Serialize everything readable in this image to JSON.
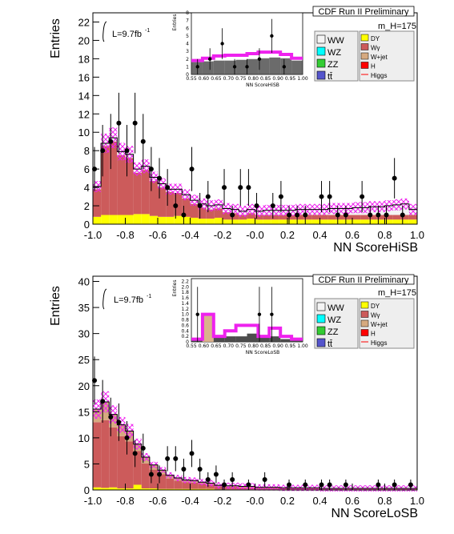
{
  "chart_data": [
    {
      "type": "bar",
      "panel": "top",
      "title": "CDF Run II Preliminary",
      "mass_label": "m_H=175",
      "lumi": "L=9.7fb",
      "lumi_exp": "-1",
      "ylabel": "Entries",
      "xlabel": "NN ScoreHiSB",
      "xlim": [
        -1.0,
        1.0
      ],
      "ylim": [
        0,
        23
      ],
      "xticks": [
        "-1.0",
        "-0.8",
        "-0.6",
        "-0.4",
        "-0.2",
        "-0.0",
        "0.2",
        "0.4",
        "0.6",
        "0.8",
        "1.0"
      ],
      "yticks": [
        "0",
        "2",
        "4",
        "6",
        "8",
        "10",
        "12",
        "14",
        "16",
        "18",
        "20",
        "22"
      ],
      "bin_edges_range": [
        -1.0,
        1.0
      ],
      "series": [
        {
          "name": "DY",
          "color": "#ffff00",
          "values": [
            0.8,
            1.0,
            1.0,
            1.0,
            1.0,
            1.1,
            1.1,
            0.9,
            0.8,
            0.8,
            0.9,
            0.8,
            0.7,
            0.6,
            0.6,
            0.7,
            0.5,
            0.5,
            0.5,
            0.6,
            0.5,
            0.5,
            0.5,
            0.5,
            0.5,
            0.5,
            0.5,
            0.5,
            0.5,
            0.5,
            0.5,
            0.5,
            0.5,
            0.5,
            0.5,
            0.5,
            0.5,
            0.5,
            0.5,
            0.5
          ]
        },
        {
          "name": "Wγ",
          "color": "#cc5b5b",
          "values": [
            3.0,
            7.5,
            8.0,
            6.5,
            6.2,
            4.5,
            4.8,
            3.8,
            3.2,
            2.7,
            2.5,
            2.0,
            1.5,
            1.2,
            1.0,
            1.0,
            0.8,
            0.7,
            0.5,
            0.6,
            0.5,
            0.5,
            0.5,
            0.5,
            0.5,
            0.5,
            0.5,
            0.5,
            0.5,
            0.5,
            0.5,
            0.5,
            0.5,
            0.5,
            0.5,
            0.5,
            0.5,
            0.5,
            0.5,
            0.5
          ]
        },
        {
          "name": "WW",
          "color": "#f4f4f4",
          "values": [
            0.2,
            0.2,
            0.3,
            0.3,
            0.3,
            0.3,
            0.3,
            0.3,
            0.3,
            0.3,
            0.3,
            0.3,
            0.3,
            0.3,
            0.3,
            0.3,
            0.3,
            0.3,
            0.3,
            0.3,
            0.3,
            0.4,
            0.4,
            0.4,
            0.4,
            0.5,
            0.5,
            0.5,
            0.5,
            0.6,
            0.6,
            0.6,
            0.7,
            0.7,
            0.8,
            0.8,
            0.9,
            1.0,
            1.0,
            0.9
          ]
        }
      ],
      "total": [
        4.1,
        8.8,
        9.4,
        7.9,
        7.6,
        6.0,
        6.3,
        5.1,
        4.4,
        3.8,
        3.8,
        3.2,
        2.6,
        2.2,
        2.0,
        2.1,
        1.7,
        1.6,
        1.4,
        1.6,
        1.4,
        1.5,
        1.5,
        1.5,
        1.5,
        1.6,
        1.6,
        1.6,
        1.6,
        1.7,
        1.7,
        1.7,
        1.8,
        1.8,
        1.9,
        1.9,
        2.0,
        2.1,
        2.2,
        1.6
      ],
      "data_points": [
        {
          "x": -0.99,
          "y": 6,
          "err": 2.4
        },
        {
          "x": -0.94,
          "y": 8,
          "err": 2.8
        },
        {
          "x": -0.89,
          "y": 9,
          "err": 3.0
        },
        {
          "x": -0.84,
          "y": 11,
          "err": 3.3
        },
        {
          "x": -0.79,
          "y": 8,
          "err": 2.8
        },
        {
          "x": -0.74,
          "y": 11,
          "err": 3.3
        },
        {
          "x": -0.69,
          "y": 9,
          "err": 3.0
        },
        {
          "x": -0.64,
          "y": 6,
          "err": 2.4
        },
        {
          "x": -0.59,
          "y": 5,
          "err": 2.2
        },
        {
          "x": -0.54,
          "y": 4,
          "err": 2.0
        },
        {
          "x": -0.49,
          "y": 2,
          "err": 1.4
        },
        {
          "x": -0.44,
          "y": 1,
          "err": 1.0
        },
        {
          "x": -0.39,
          "y": 6,
          "err": 2.4
        },
        {
          "x": -0.34,
          "y": 2,
          "err": 1.4
        },
        {
          "x": -0.29,
          "y": 3,
          "err": 1.7
        },
        {
          "x": -0.19,
          "y": 4,
          "err": 2.0
        },
        {
          "x": -0.14,
          "y": 1,
          "err": 1.0
        },
        {
          "x": -0.09,
          "y": 4,
          "err": 2.0
        },
        {
          "x": -0.04,
          "y": 4,
          "err": 2.0
        },
        {
          "x": 0.01,
          "y": 2,
          "err": 1.4
        },
        {
          "x": 0.11,
          "y": 2,
          "err": 1.4
        },
        {
          "x": 0.16,
          "y": 3,
          "err": 1.7
        },
        {
          "x": 0.21,
          "y": 1,
          "err": 1.0
        },
        {
          "x": 0.26,
          "y": 1,
          "err": 1.0
        },
        {
          "x": 0.31,
          "y": 1,
          "err": 1.0
        },
        {
          "x": 0.41,
          "y": 3,
          "err": 1.7
        },
        {
          "x": 0.46,
          "y": 3,
          "err": 1.7
        },
        {
          "x": 0.51,
          "y": 1,
          "err": 1.0
        },
        {
          "x": 0.56,
          "y": 1,
          "err": 1.0
        },
        {
          "x": 0.66,
          "y": 3,
          "err": 1.7
        },
        {
          "x": 0.71,
          "y": 1,
          "err": 1.0
        },
        {
          "x": 0.76,
          "y": 1,
          "err": 1.0
        },
        {
          "x": 0.81,
          "y": 1,
          "err": 1.0
        },
        {
          "x": 0.86,
          "y": 5,
          "err": 2.2
        },
        {
          "x": 0.91,
          "y": 1,
          "err": 1.0
        }
      ],
      "inset": {
        "ylabel": "Entries",
        "xlabel": "NN ScoreHiSB",
        "xlim": [
          0.55,
          1.0
        ],
        "ylim": [
          0,
          8
        ],
        "xticks": [
          "0.55",
          "0.60",
          "0.65",
          "0.70",
          "0.75",
          "0.80",
          "0.85",
          "0.90",
          "0.95",
          "1.00"
        ],
        "yticks": [
          "0",
          "1",
          "2",
          "3",
          "4",
          "5",
          "6",
          "7",
          "8"
        ],
        "total": [
          1.6,
          1.7,
          1.8,
          1.8,
          1.9,
          2.0,
          2.1,
          2.2,
          2.1,
          1.8
        ],
        "higgs": [
          0.2,
          0.4,
          0.6,
          0.7,
          0.6,
          0.7,
          0.8,
          0.7,
          0.5,
          0.3
        ],
        "data_points": [
          {
            "x": 0.575,
            "y": 1,
            "err": 1.0
          },
          {
            "x": 0.625,
            "y": 2,
            "err": 1.4
          },
          {
            "x": 0.675,
            "y": 4,
            "err": 2.0
          },
          {
            "x": 0.725,
            "y": 1,
            "err": 1.0
          },
          {
            "x": 0.775,
            "y": 1,
            "err": 1.0
          },
          {
            "x": 0.825,
            "y": 2,
            "err": 1.4
          },
          {
            "x": 0.875,
            "y": 5,
            "err": 2.2
          },
          {
            "x": 0.925,
            "y": 1,
            "err": 1.0
          }
        ]
      },
      "legend_left": [
        "WW",
        "WZ",
        "ZZ",
        "tt̄"
      ],
      "legend_left_colors": [
        "#f4f4f4",
        "#00ffff",
        "#33cc33",
        "#5555cc"
      ],
      "legend_right": [
        "DY",
        "Wγ",
        "W+jet",
        "H",
        "Higgs"
      ],
      "legend_right_colors": [
        "#ffff00",
        "#cc5b5b",
        "#d6aa80",
        "#ff0000",
        "#ff0000"
      ]
    },
    {
      "type": "bar",
      "panel": "bottom",
      "title": "CDF Run II Preliminary",
      "mass_label": "m_H=175",
      "lumi": "L=9.7fb",
      "lumi_exp": "-1",
      "ylabel": "Entries",
      "xlabel": "NN ScoreLoSB",
      "xlim": [
        -1.0,
        1.0
      ],
      "ylim": [
        0,
        41
      ],
      "xticks": [
        "-1.0",
        "-0.8",
        "-0.6",
        "-0.4",
        "-0.2",
        "-0.0",
        "0.2",
        "0.4",
        "0.6",
        "0.8",
        "1.0"
      ],
      "yticks": [
        "0",
        "5",
        "10",
        "15",
        "20",
        "25",
        "30",
        "35",
        "40"
      ],
      "series": [
        {
          "name": "DY",
          "color": "#ffff00",
          "values": [
            0.5,
            0.4,
            0.5,
            0.3,
            0.3,
            1.0,
            0.3,
            0.3,
            0.2,
            0.2,
            0.2,
            0.2,
            0.2,
            0.2,
            0.2,
            0.1,
            0.1,
            0.1,
            0.1,
            0.1,
            0.1,
            0.1,
            0.1,
            0.1,
            0.1,
            0.1,
            0.1,
            0.1,
            0.1,
            0.1,
            0.1,
            0.1,
            0.1,
            0.1,
            0.1,
            0.1,
            0.1,
            0.1,
            0.1,
            0.1
          ]
        },
        {
          "name": "Wγ",
          "color": "#cc5b5b",
          "values": [
            12.5,
            13.0,
            11.5,
            10.0,
            9.0,
            6.5,
            4.8,
            3.6,
            2.8,
            2.0,
            1.6,
            1.3,
            1.2,
            1.0,
            0.8,
            0.6,
            0.5,
            0.5,
            0.4,
            0.4,
            0.3,
            0.3,
            0.3,
            0.2,
            0.2,
            0.2,
            0.2,
            0.2,
            0.1,
            0.1,
            0.1,
            0.1,
            0.1,
            0.1,
            0.1,
            0.1,
            0.1,
            0.1,
            0.1,
            0.1
          ]
        },
        {
          "name": "W+jet",
          "color": "#d6aa80",
          "values": [
            2.5,
            3.5,
            2.5,
            2.2,
            2.0,
            1.3,
            1.2,
            0.9,
            0.8,
            0.6,
            0.5,
            0.4,
            0.4,
            0.3,
            0.3,
            0.2,
            0.2,
            0.2,
            0.2,
            0.2,
            0.1,
            0.1,
            0.1,
            0.1,
            0.1,
            0.1,
            0.1,
            0.1,
            0.1,
            0.1,
            0.1,
            0.1,
            0.1,
            0.1,
            0.1,
            0.1,
            0.1,
            0.1,
            0.1,
            0.1
          ]
        }
      ],
      "total": [
        15.5,
        16.9,
        14.5,
        12.5,
        11.3,
        8.8,
        6.3,
        4.8,
        3.8,
        2.8,
        2.3,
        1.9,
        1.8,
        1.5,
        1.3,
        0.9,
        0.8,
        0.8,
        0.7,
        0.7,
        0.5,
        0.5,
        0.5,
        0.4,
        0.4,
        0.4,
        0.4,
        0.4,
        0.3,
        0.3,
        0.3,
        0.3,
        0.3,
        0.3,
        0.3,
        0.3,
        0.3,
        0.3,
        0.3,
        0.3
      ],
      "data_points": [
        {
          "x": -0.99,
          "y": 21,
          "err": 4.6
        },
        {
          "x": -0.94,
          "y": 17,
          "err": 4.1
        },
        {
          "x": -0.89,
          "y": 14,
          "err": 3.7
        },
        {
          "x": -0.84,
          "y": 13,
          "err": 3.6
        },
        {
          "x": -0.79,
          "y": 10,
          "err": 3.2
        },
        {
          "x": -0.74,
          "y": 7,
          "err": 2.6
        },
        {
          "x": -0.69,
          "y": 8,
          "err": 2.8
        },
        {
          "x": -0.64,
          "y": 3,
          "err": 1.7
        },
        {
          "x": -0.59,
          "y": 3,
          "err": 1.7
        },
        {
          "x": -0.54,
          "y": 6,
          "err": 2.4
        },
        {
          "x": -0.49,
          "y": 6,
          "err": 2.4
        },
        {
          "x": -0.44,
          "y": 4,
          "err": 2.0
        },
        {
          "x": -0.39,
          "y": 7,
          "err": 2.6
        },
        {
          "x": -0.34,
          "y": 4,
          "err": 2.0
        },
        {
          "x": -0.29,
          "y": 2,
          "err": 1.4
        },
        {
          "x": -0.24,
          "y": 3,
          "err": 1.7
        },
        {
          "x": -0.19,
          "y": 1,
          "err": 1.0
        },
        {
          "x": -0.14,
          "y": 2,
          "err": 1.4
        },
        {
          "x": -0.04,
          "y": 1,
          "err": 1.0
        },
        {
          "x": 0.06,
          "y": 2,
          "err": 1.4
        },
        {
          "x": 0.21,
          "y": 1,
          "err": 1.0
        },
        {
          "x": 0.31,
          "y": 1,
          "err": 1.0
        },
        {
          "x": 0.41,
          "y": 1,
          "err": 1.0
        },
        {
          "x": 0.46,
          "y": 1,
          "err": 1.0
        },
        {
          "x": 0.56,
          "y": 1,
          "err": 1.0
        },
        {
          "x": 0.76,
          "y": 1,
          "err": 1.0
        },
        {
          "x": 0.86,
          "y": 1,
          "err": 1.0
        },
        {
          "x": 0.96,
          "y": 1,
          "err": 1.0
        }
      ],
      "inset": {
        "ylabel": "Entries",
        "xlabel": "NN ScoreLoSB",
        "xlim": [
          0.55,
          1.0
        ],
        "ylim": [
          0,
          2.3
        ],
        "xticks": [
          "0.55",
          "0.60",
          "0.65",
          "0.70",
          "0.75",
          "0.80",
          "0.85",
          "0.90",
          "0.95",
          "1.00"
        ],
        "yticks": [
          "0",
          "0.2",
          "0.4",
          "0.6",
          "0.8",
          "1.0",
          "1.2",
          "1.4",
          "1.6",
          "1.8",
          "2.0",
          "2.2"
        ],
        "total": [
          0.1,
          1.0,
          0.2,
          0.2,
          0.2,
          0.3,
          0.2,
          0.2,
          0.1,
          0.1
        ],
        "higgs": [
          0.0,
          0.0,
          0.0,
          0.2,
          0.4,
          0.3,
          0.0,
          0.3,
          0.1,
          0.0
        ],
        "data_points": [
          {
            "x": 0.575,
            "y": 1,
            "err": 1.0
          },
          {
            "x": 0.825,
            "y": 1,
            "err": 1.0
          },
          {
            "x": 0.875,
            "y": 1,
            "err": 1.0
          }
        ]
      },
      "legend_left": [
        "WW",
        "WZ",
        "ZZ",
        "tt̄"
      ],
      "legend_left_colors": [
        "#f4f4f4",
        "#00ffff",
        "#33cc33",
        "#5555cc"
      ],
      "legend_right": [
        "DY",
        "Wγ",
        "W+jet",
        "H",
        "Higgs"
      ],
      "legend_right_colors": [
        "#ffff00",
        "#cc5b5b",
        "#d6aa80",
        "#ff0000",
        "#ff0000"
      ]
    }
  ]
}
